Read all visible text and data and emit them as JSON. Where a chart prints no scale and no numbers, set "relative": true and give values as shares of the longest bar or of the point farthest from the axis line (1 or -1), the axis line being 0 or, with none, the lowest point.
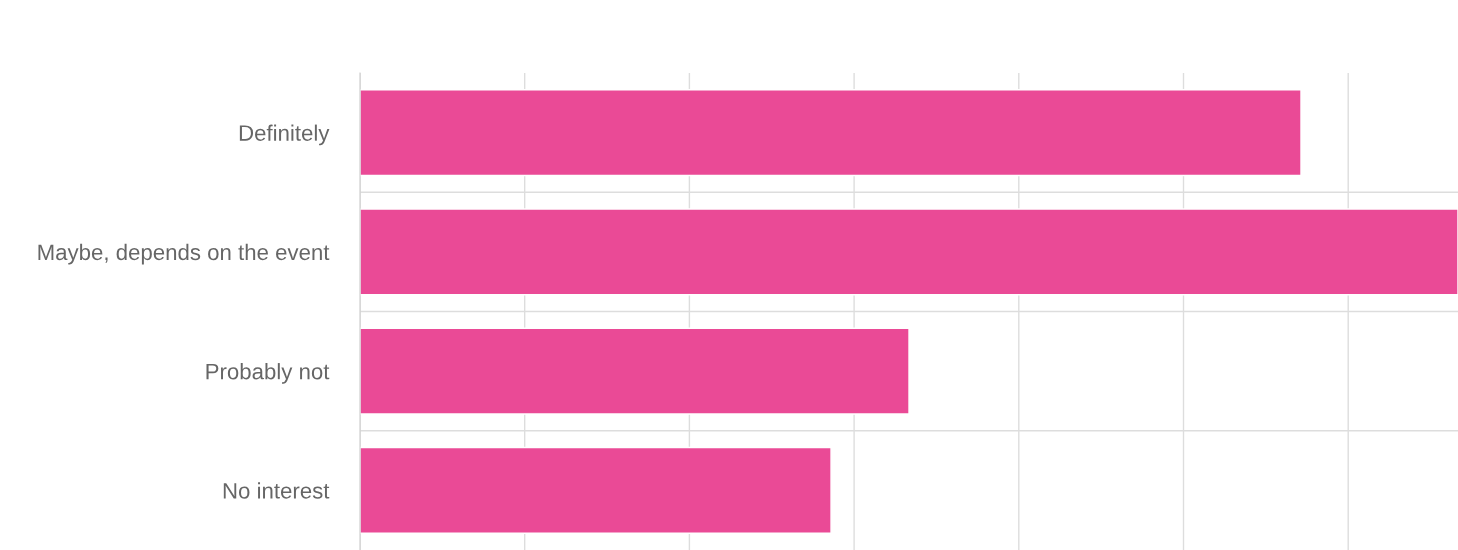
{
  "chart_data": {
    "type": "bar",
    "orientation": "horizontal",
    "relative": true,
    "categories": [
      "Definitely",
      "Maybe, depends on the event",
      "Probably not",
      "No interest"
    ],
    "values": [
      0.857,
      1,
      0.5,
      0.429
    ],
    "color": "#ea4a96",
    "grid": true
  }
}
